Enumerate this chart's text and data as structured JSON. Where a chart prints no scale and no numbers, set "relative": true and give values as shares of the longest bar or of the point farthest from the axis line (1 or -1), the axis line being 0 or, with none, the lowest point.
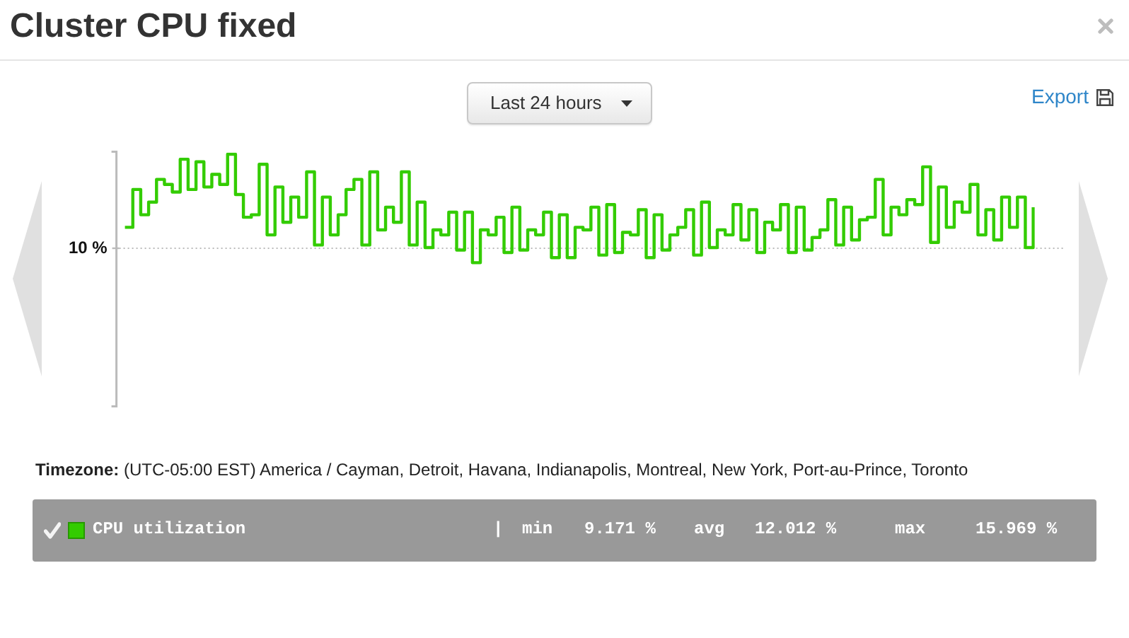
{
  "chart_data": {
    "type": "step",
    "title": "Cluster CPU fixed",
    "relative": true,
    "categories": [
      null,
      null,
      null,
      null,
      null,
      null,
      null,
      null,
      null,
      null,
      null,
      null,
      null,
      null,
      null,
      null,
      null,
      null,
      null,
      null,
      null,
      null,
      null,
      null,
      null,
      null,
      null,
      null,
      null,
      null,
      null,
      null,
      null,
      null,
      null,
      null,
      null,
      null,
      null,
      null,
      null,
      null,
      null,
      null,
      null,
      null,
      null,
      null,
      null,
      null,
      null,
      null,
      null,
      null,
      null,
      null,
      null,
      null,
      null,
      null,
      null,
      null,
      null,
      null,
      null,
      null,
      null,
      null,
      null,
      null,
      null,
      null,
      null,
      null,
      null,
      null,
      null,
      null,
      null,
      null,
      null,
      null,
      null,
      null,
      null,
      null,
      null,
      null,
      null,
      null,
      null,
      null,
      null,
      null,
      null,
      null,
      null,
      null,
      null,
      null,
      null,
      null,
      null,
      null,
      null,
      null,
      null,
      null,
      null,
      null,
      null,
      null,
      null,
      null,
      null,
      null
    ],
    "series": [
      {
        "name": "CPU utilization",
        "color": "#33cc00",
        "values": [
          0.71,
          0.86,
          0.76,
          0.81,
          0.9,
          0.88,
          0.85,
          0.98,
          0.86,
          0.97,
          0.87,
          0.92,
          0.88,
          1,
          0.84,
          0.75,
          0.76,
          0.96,
          0.68,
          0.87,
          0.73,
          0.83,
          0.75,
          0.93,
          0.64,
          0.83,
          0.68,
          0.76,
          0.86,
          0.9,
          0.64,
          0.93,
          0.7,
          0.79,
          0.73,
          0.93,
          0.64,
          0.81,
          0.63,
          0.7,
          0.68,
          0.77,
          0.62,
          0.77,
          0.57,
          0.7,
          0.68,
          0.75,
          0.61,
          0.79,
          0.62,
          0.7,
          0.68,
          0.77,
          0.59,
          0.76,
          0.59,
          0.71,
          0.7,
          0.79,
          0.6,
          0.8,
          0.61,
          0.69,
          0.68,
          0.78,
          0.59,
          0.76,
          0.62,
          0.68,
          0.71,
          0.78,
          0.6,
          0.81,
          0.63,
          0.7,
          0.68,
          0.8,
          0.66,
          0.78,
          0.61,
          0.73,
          0.7,
          0.8,
          0.61,
          0.79,
          0.62,
          0.67,
          0.7,
          0.82,
          0.64,
          0.79,
          0.66,
          0.74,
          0.75,
          0.9,
          0.68,
          0.79,
          0.76,
          0.82,
          0.8,
          0.95,
          0.65,
          0.87,
          0.71,
          0.81,
          0.77,
          0.88,
          0.68,
          0.78,
          0.66,
          0.83,
          0.71,
          0.83,
          0.63,
          0.79
        ]
      }
    ],
    "ref_lines": [
      {
        "axis": "y",
        "value": 0.63,
        "color": "#bbbbbb",
        "line_style": "dotted"
      }
    ],
    "legend": "bottom",
    "annotations": [
      "10 %",
      "Last 24 hours",
      "Export",
      "Timezone:",
      "(UTC-05:00 EST) America / Cayman, Detroit, Havana, Indianapolis, Montreal, New York, Port-au-Prince, Toronto",
      "|",
      "min",
      "9.171 %",
      "avg",
      "12.012 %",
      "max",
      "15.969 %"
    ]
  }
}
